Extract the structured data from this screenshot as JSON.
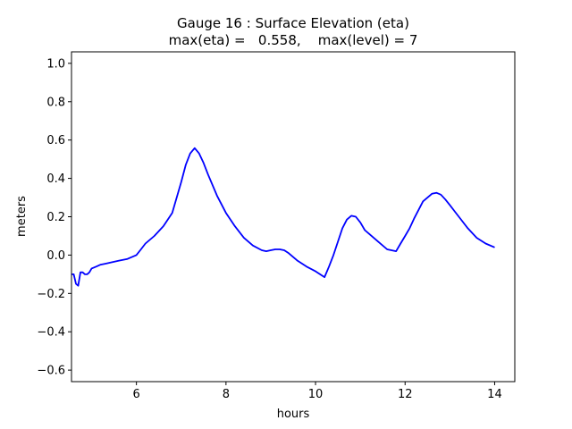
{
  "chart_data": {
    "type": "line",
    "title_lines": [
      "Gauge 16 : Surface Elevation (eta)",
      "max(eta) =   0.558,    max(level) = 7"
    ],
    "xlabel": "hours",
    "ylabel": "meters",
    "xlim": [
      4.55,
      14.45
    ],
    "ylim": [
      -0.66,
      1.06
    ],
    "xticks": [
      6,
      8,
      10,
      12,
      14
    ],
    "yticks": [
      -0.6,
      -0.4,
      -0.2,
      0.0,
      0.2,
      0.4,
      0.6,
      0.8,
      1.0
    ],
    "xtick_labels": [
      "6",
      "8",
      "10",
      "12",
      "14"
    ],
    "ytick_labels": [
      "−0.6",
      "−0.4",
      "−0.2",
      "0.0",
      "0.2",
      "0.4",
      "0.6",
      "0.8",
      "1.0"
    ],
    "grid": false,
    "series": [
      {
        "color": "#0000ff",
        "x": [
          4.55,
          4.6,
          4.65,
          4.7,
          4.75,
          4.8,
          4.85,
          4.9,
          4.95,
          5.0,
          5.1,
          5.2,
          5.3,
          5.4,
          5.5,
          5.6,
          5.7,
          5.8,
          5.9,
          6.0,
          6.1,
          6.2,
          6.4,
          6.6,
          6.8,
          7.0,
          7.1,
          7.2,
          7.3,
          7.4,
          7.5,
          7.6,
          7.8,
          8.0,
          8.2,
          8.4,
          8.6,
          8.8,
          8.9,
          9.0,
          9.1,
          9.2,
          9.3,
          9.4,
          9.6,
          9.8,
          10.0,
          10.1,
          10.2,
          10.3,
          10.4,
          10.5,
          10.6,
          10.7,
          10.8,
          10.9,
          11.0,
          11.1,
          11.2,
          11.4,
          11.6,
          11.8,
          11.9,
          12.0,
          12.1,
          12.2,
          12.4,
          12.6,
          12.7,
          12.8,
          12.9,
          13.0,
          13.2,
          13.4,
          13.6,
          13.8,
          14.0
        ],
        "y": [
          -0.1,
          -0.1,
          -0.15,
          -0.16,
          -0.09,
          -0.09,
          -0.1,
          -0.1,
          -0.09,
          -0.07,
          -0.06,
          -0.05,
          -0.045,
          -0.04,
          -0.035,
          -0.03,
          -0.025,
          -0.02,
          -0.01,
          0.0,
          0.03,
          0.06,
          0.1,
          0.15,
          0.22,
          0.38,
          0.47,
          0.53,
          0.558,
          0.53,
          0.48,
          0.42,
          0.31,
          0.22,
          0.15,
          0.09,
          0.05,
          0.025,
          0.02,
          0.025,
          0.03,
          0.03,
          0.025,
          0.01,
          -0.03,
          -0.06,
          -0.085,
          -0.1,
          -0.115,
          -0.06,
          0.0,
          0.07,
          0.14,
          0.185,
          0.205,
          0.2,
          0.17,
          0.13,
          0.11,
          0.07,
          0.03,
          0.02,
          0.06,
          0.1,
          0.14,
          0.19,
          0.28,
          0.32,
          0.325,
          0.315,
          0.29,
          0.26,
          0.2,
          0.14,
          0.09,
          0.06,
          0.04
        ]
      }
    ]
  }
}
